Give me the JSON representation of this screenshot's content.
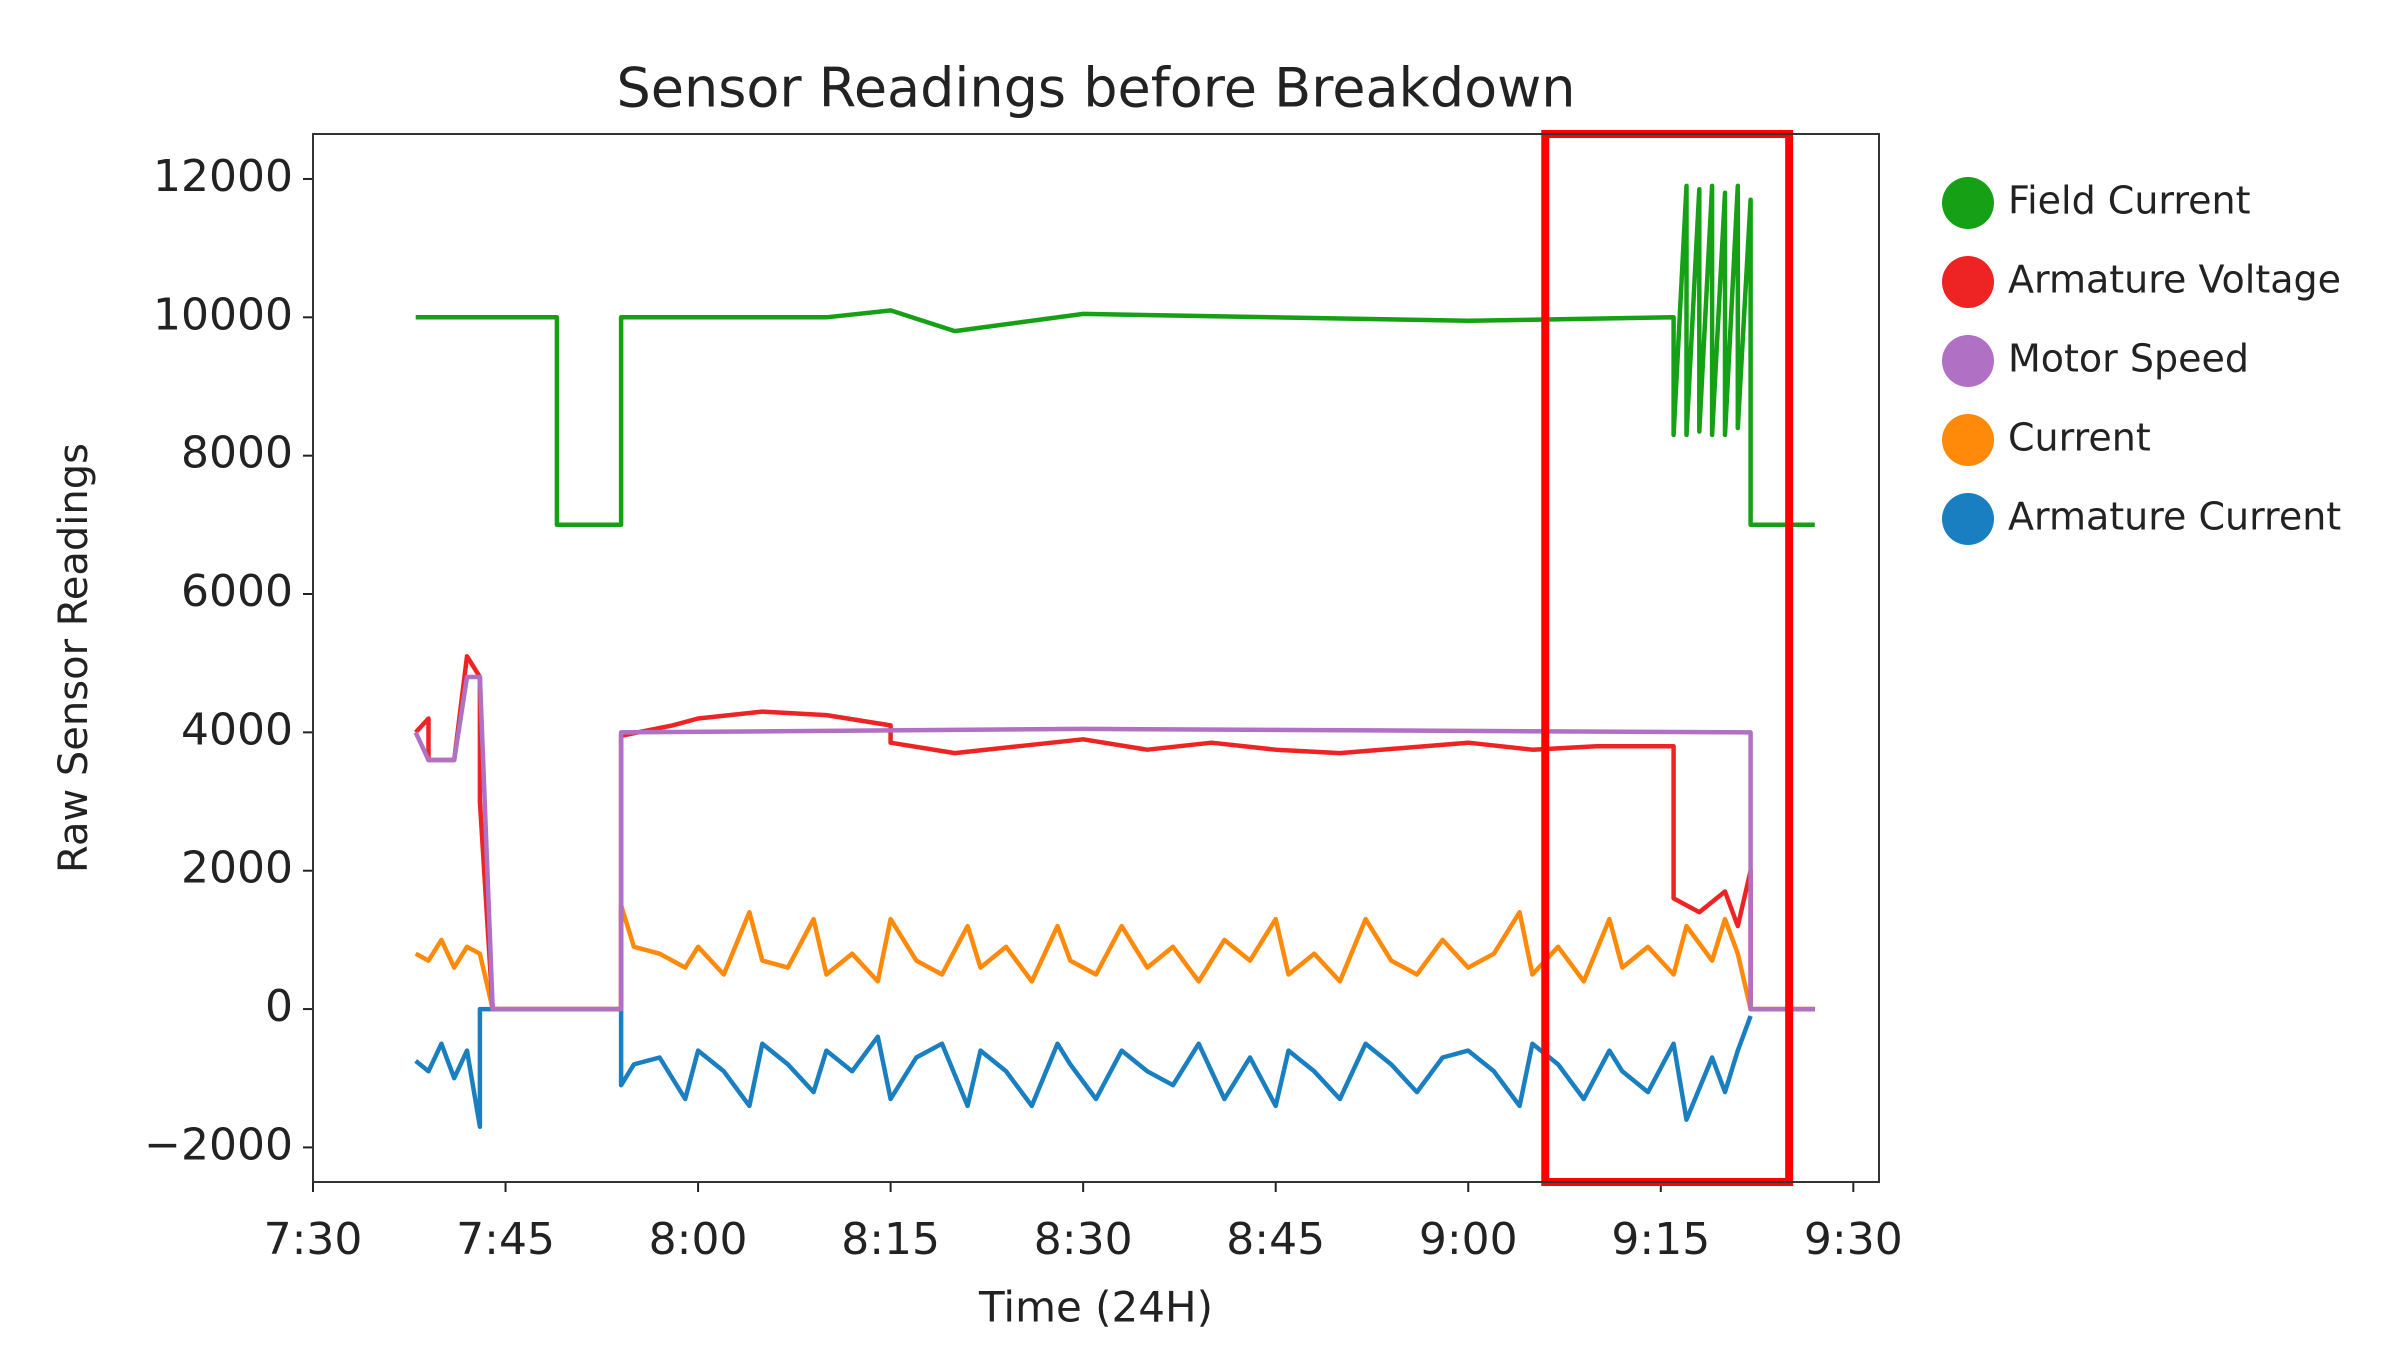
{
  "chart_data": {
    "type": "line",
    "title": "Sensor Readings before Breakdown",
    "x_label": "Time (24H)",
    "y_label": "Raw Sensor Readings",
    "xlim": [
      "7:30",
      "9:32"
    ],
    "xticks": [
      "7:30",
      "7:45",
      "8:00",
      "8:15",
      "8:30",
      "8:45",
      "9:00",
      "9:15",
      "9:30"
    ],
    "ylim": [
      -2500,
      12650
    ],
    "yticks": [
      {
        "value": -2000,
        "label": "−2000"
      },
      0,
      2000,
      4000,
      6000,
      8000,
      10000,
      12000
    ],
    "grid": false,
    "legend": "outside-right",
    "highlight": {
      "xlim": [
        "9:06",
        "9:25"
      ],
      "color": "#ff0000"
    },
    "series": [
      {
        "name": "Field Current",
        "color": "#16a016",
        "x": [
          "7:38",
          "7:49",
          "7:49",
          "7:54",
          "7:54",
          "8:10",
          "8:15",
          "8:20",
          "8:30",
          "9:00",
          "9:16",
          "9:16",
          "9:17",
          "9:17",
          "9:18",
          "9:18",
          "9:19",
          "9:19",
          "9:20",
          "9:20",
          "9:21",
          "9:21",
          "9:22",
          "9:22",
          "9:27"
        ],
        "values": [
          10000,
          10000,
          7000,
          7000,
          10000,
          10000,
          10100,
          9800,
          10050,
          9950,
          10000,
          8300,
          11900,
          8300,
          11850,
          8350,
          11900,
          8300,
          11800,
          8300,
          11900,
          8400,
          11700,
          7000,
          7000
        ]
      },
      {
        "name": "Armature Voltage",
        "color": "#ee2424",
        "x": [
          "7:38",
          "7:39",
          "7:39",
          "7:41",
          "7:42",
          "7:43",
          "7:43",
          "7:44",
          "7:54",
          "7:54",
          "7:58",
          "8:00",
          "8:05",
          "8:10",
          "8:15",
          "8:15",
          "8:20",
          "8:25",
          "8:30",
          "8:35",
          "8:40",
          "8:45",
          "8:50",
          "9:00",
          "9:05",
          "9:10",
          "9:16",
          "9:16",
          "9:18",
          "9:20",
          "9:21",
          "9:22",
          "9:22",
          "9:27"
        ],
        "values": [
          4000,
          4200,
          3600,
          3600,
          5100,
          4800,
          3000,
          0,
          0,
          3950,
          4100,
          4200,
          4300,
          4250,
          4100,
          3850,
          3700,
          3800,
          3900,
          3750,
          3850,
          3750,
          3700,
          3850,
          3750,
          3800,
          3800,
          1600,
          1400,
          1700,
          1200,
          2000,
          0,
          0
        ]
      },
      {
        "name": "Motor Speed",
        "color": "#b070c4",
        "x": [
          "7:38",
          "7:39",
          "7:41",
          "7:42",
          "7:43",
          "7:44",
          "7:54",
          "7:54",
          "8:30",
          "9:22",
          "9:22",
          "9:27"
        ],
        "values": [
          4000,
          3600,
          3600,
          4800,
          4800,
          0,
          0,
          4000,
          4050,
          4000,
          0,
          0
        ]
      },
      {
        "name": "Current",
        "color": "#ff8a0a",
        "x": [
          "7:38",
          "7:39",
          "7:40",
          "7:41",
          "7:42",
          "7:43",
          "7:44",
          "7:54",
          "7:54",
          "7:55",
          "7:57",
          "7:59",
          "8:00",
          "8:02",
          "8:04",
          "8:05",
          "8:07",
          "8:09",
          "8:10",
          "8:12",
          "8:14",
          "8:15",
          "8:17",
          "8:19",
          "8:21",
          "8:22",
          "8:24",
          "8:26",
          "8:28",
          "8:29",
          "8:31",
          "8:33",
          "8:35",
          "8:37",
          "8:39",
          "8:41",
          "8:43",
          "8:45",
          "8:46",
          "8:48",
          "8:50",
          "8:52",
          "8:54",
          "8:56",
          "8:58",
          "9:00",
          "9:02",
          "9:04",
          "9:05",
          "9:07",
          "9:09",
          "9:11",
          "9:12",
          "9:14",
          "9:16",
          "9:17",
          "9:19",
          "9:20",
          "9:21",
          "9:22",
          "9:27"
        ],
        "values": [
          800,
          700,
          1000,
          600,
          900,
          800,
          0,
          0,
          1500,
          900,
          800,
          600,
          900,
          500,
          1400,
          700,
          600,
          1300,
          500,
          800,
          400,
          1300,
          700,
          500,
          1200,
          600,
          900,
          400,
          1200,
          700,
          500,
          1200,
          600,
          900,
          400,
          1000,
          700,
          1300,
          500,
          800,
          400,
          1300,
          700,
          500,
          1000,
          600,
          800,
          1400,
          500,
          900,
          400,
          1300,
          600,
          900,
          500,
          1200,
          700,
          1300,
          800,
          0,
          0
        ]
      },
      {
        "name": "Armature Current",
        "color": "#1a7fc0",
        "x": [
          "7:38",
          "7:39",
          "7:40",
          "7:41",
          "7:42",
          "7:43",
          "7:43",
          "7:44",
          "7:54",
          "7:54",
          "7:55",
          "7:57",
          "7:59",
          "8:00",
          "8:02",
          "8:04",
          "8:05",
          "8:07",
          "8:09",
          "8:10",
          "8:12",
          "8:14",
          "8:15",
          "8:17",
          "8:19",
          "8:21",
          "8:22",
          "8:24",
          "8:26",
          "8:28",
          "8:29",
          "8:31",
          "8:33",
          "8:35",
          "8:37",
          "8:39",
          "8:41",
          "8:43",
          "8:45",
          "8:46",
          "8:48",
          "8:50",
          "8:52",
          "8:54",
          "8:56",
          "8:58",
          "9:00",
          "9:02",
          "9:04",
          "9:05",
          "9:07",
          "9:09",
          "9:11",
          "9:12",
          "9:14",
          "9:16",
          "9:17",
          "9:19",
          "9:20",
          "9:21",
          "9:22"
        ],
        "values": [
          -750,
          -900,
          -500,
          -1000,
          -600,
          -1700,
          0,
          0,
          0,
          -1100,
          -800,
          -700,
          -1300,
          -600,
          -900,
          -1400,
          -500,
          -800,
          -1200,
          -600,
          -900,
          -400,
          -1300,
          -700,
          -500,
          -1400,
          -600,
          -900,
          -1400,
          -500,
          -800,
          -1300,
          -600,
          -900,
          -1100,
          -500,
          -1300,
          -700,
          -1400,
          -600,
          -900,
          -1300,
          -500,
          -800,
          -1200,
          -700,
          -600,
          -900,
          -1400,
          -500,
          -800,
          -1300,
          -600,
          -900,
          -1200,
          -500,
          -1600,
          -700,
          -1200,
          -600,
          -100
        ]
      }
    ]
  }
}
